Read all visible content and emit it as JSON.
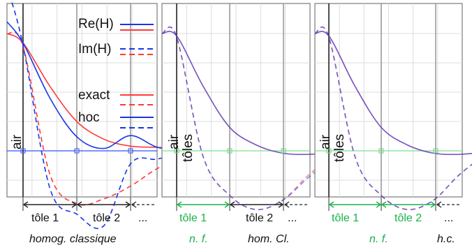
{
  "chart_data": [
    {
      "type": "line",
      "legend": {
        "real_label": "Re(H)",
        "imag_label": "Im(H)",
        "exact_label": "exact",
        "hoc_label": "hoc",
        "placement": "top-right"
      },
      "region_labels": {
        "left": "air",
        "right": ""
      },
      "bracket_labels": [
        "tôle 1",
        "tôle 2",
        "..."
      ],
      "caption": "homog. classique",
      "grid": true,
      "x": [
        -1,
        0,
        1,
        2,
        3,
        4,
        5,
        6,
        7,
        8
      ],
      "series": [
        {
          "kind": "re",
          "method": "exact",
          "color": "#ff3b3b",
          "values": [
            1,
            0.92,
            0.55,
            0.25,
            0.1,
            0.04,
            0.03,
            0.02,
            0.01,
            0
          ]
        },
        {
          "kind": "im",
          "method": "exact",
          "color": "#ff3b3b",
          "values": [
            1,
            0.89,
            -0.2,
            -0.45,
            -0.41,
            -0.3,
            -0.15,
            -0.05,
            0.02,
            0
          ]
        },
        {
          "kind": "re",
          "method": "hoc",
          "color": "#1a35e8",
          "values": [
            1.1,
            0.92,
            0.45,
            0.12,
            0.02,
            0.13,
            0.03,
            0.01,
            0.01,
            0
          ]
        },
        {
          "kind": "im",
          "method": "hoc",
          "color": "#1a35e8",
          "values": [
            1.4,
            0.9,
            -0.32,
            -0.54,
            -0.64,
            -0.11,
            -0.07,
            -0.01,
            0.02,
            0
          ]
        }
      ]
    },
    {
      "type": "line",
      "region_labels": {
        "left": "air",
        "right": "tôles"
      },
      "bracket_labels": [
        "tôle 1",
        "tôle 2",
        "..."
      ],
      "caption_left": "n. f.",
      "caption_right": "hom. Cl.",
      "grid": true,
      "x": [
        -1,
        0,
        1,
        2,
        3,
        4,
        5,
        6,
        7,
        8
      ],
      "series": [
        {
          "kind": "re",
          "method": "exact",
          "color": "#ff3b3b",
          "values": [
            1,
            0.98,
            0.55,
            0.2,
            0.05,
            -0.02,
            -0.03,
            -0.01,
            0,
            0
          ]
        },
        {
          "kind": "im",
          "method": "exact",
          "color": "#ff3b3b",
          "values": [
            1,
            0.97,
            -0.05,
            -0.38,
            -0.5,
            -0.42,
            -0.2,
            -0.04,
            0.03,
            0
          ]
        },
        {
          "kind": "re",
          "method": "hoc",
          "color": "#1a35e8",
          "values": [
            1,
            0.98,
            0.55,
            0.2,
            0.05,
            -0.02,
            -0.03,
            -0.01,
            0,
            0
          ]
        },
        {
          "kind": "im",
          "method": "hoc",
          "color": "#1a35e8",
          "values": [
            1,
            0.97,
            -0.05,
            -0.38,
            -0.5,
            -0.42,
            -0.22,
            -0.05,
            0.02,
            0
          ]
        }
      ]
    },
    {
      "type": "line",
      "region_labels": {
        "left": "air",
        "right": "tôles"
      },
      "bracket_labels": [
        "tôle 1",
        "tôle 2",
        "..."
      ],
      "caption_left": "n. f.",
      "caption_right": "h.c.",
      "grid": true,
      "x": [
        -1,
        0,
        1,
        2,
        3,
        4,
        5,
        6,
        7,
        8
      ],
      "series": [
        {
          "kind": "re",
          "method": "exact",
          "color": "#ff3b3b",
          "values": [
            1,
            0.98,
            0.55,
            0.2,
            0.05,
            -0.02,
            -0.03,
            -0.01,
            0,
            0
          ]
        },
        {
          "kind": "im",
          "method": "exact",
          "color": "#ff3b3b",
          "values": [
            1,
            0.97,
            -0.05,
            -0.38,
            -0.5,
            -0.42,
            -0.2,
            -0.04,
            0.03,
            0
          ]
        },
        {
          "kind": "re",
          "method": "hoc",
          "color": "#1a35e8",
          "values": [
            1,
            0.98,
            0.55,
            0.2,
            0.05,
            -0.02,
            -0.03,
            -0.01,
            0,
            0
          ]
        },
        {
          "kind": "im",
          "method": "hoc",
          "color": "#1a35e8",
          "values": [
            1,
            0.97,
            -0.05,
            -0.38,
            -0.5,
            -0.42,
            -0.2,
            -0.04,
            0.03,
            0
          ]
        }
      ]
    }
  ]
}
